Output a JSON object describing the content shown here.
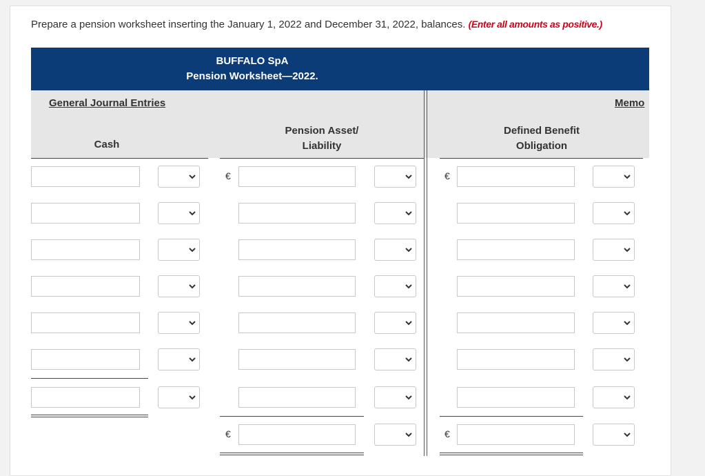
{
  "instruction": {
    "text": "Prepare a pension worksheet inserting the January 1, 2022 and December 31, 2022, balances.",
    "note": "(Enter all amounts as positive.)"
  },
  "worksheet": {
    "company": "BUFFALO SpA",
    "title": "Pension Worksheet—2022.",
    "group_headers": {
      "journal": "General Journal Entries",
      "memo": "Memo"
    },
    "columns": {
      "cash": "Cash",
      "pension": "Pension Asset/ Liability",
      "dbo": "Defined Benefit Obligation"
    },
    "currency": "€"
  }
}
